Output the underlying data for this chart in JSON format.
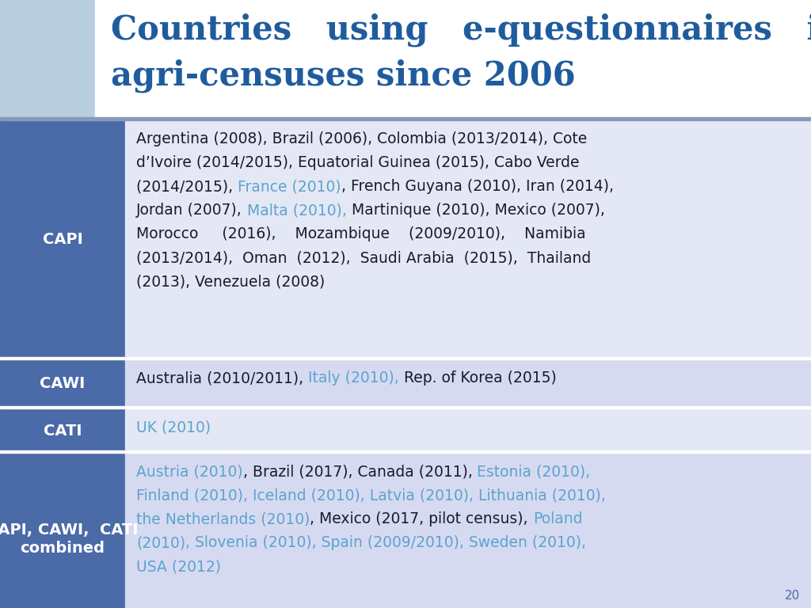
{
  "title_line1": "Countries   using   e-questionnaires   in",
  "title_line2": "agri-censuses since 2006",
  "title_color": "#1F5C9E",
  "bg_color": "#FFFFFF",
  "left_col_color": "#4A6AA8",
  "left_panel_color": "#B8CEDF",
  "grid_color": "#9BBDD0",
  "sep_line_color": "#8899BB",
  "page_number": "20",
  "page_number_color": "#4A6AA8",
  "rows": [
    {
      "label": "CAPI",
      "bg": "#E4E8F4",
      "segments": [
        {
          "text": "Argentina (2008), Brazil (2006), Colombia (2013/2014), Cote\nd’Ivoire (2014/2015), Equatorial Guinea (2015), Cabo Verde\n(2014/2015), ",
          "color": "#1a1a2e"
        },
        {
          "text": "France (2010)",
          "color": "#5BA3D0"
        },
        {
          "text": ", French Guyana (2010), Iran (2014),\nJordan (2007), ",
          "color": "#1a1a2e"
        },
        {
          "text": "Malta (2010),",
          "color": "#5BA3D0"
        },
        {
          "text": " Martinique (2010), Mexico (2007),\nMorocco     (2016),    Mozambique    (2009/2010),    Namibia\n(2013/2014),  Oman  (2012),  Saudi Arabia  (2015),  Thailand\n(2013), Venezuela (2008)",
          "color": "#1a1a2e"
        }
      ]
    },
    {
      "label": "CAWI",
      "bg": "#D6DAF0",
      "segments": [
        {
          "text": "Australia (2010/2011), ",
          "color": "#1a1a2e"
        },
        {
          "text": "Italy (2010),",
          "color": "#5BA3D0"
        },
        {
          "text": " Rep. of Korea (2015)",
          "color": "#1a1a2e"
        }
      ]
    },
    {
      "label": "CATI",
      "bg": "#E4E8F4",
      "segments": [
        {
          "text": "UK (2010)",
          "color": "#5BA3D0"
        }
      ]
    },
    {
      "label": "CAPI, CAWI,  CATI\ncombined",
      "bg": "#D6DAF0",
      "segments": [
        {
          "text": "Austria (2010)",
          "color": "#5BA3D0"
        },
        {
          "text": ", Brazil (2017), Canada (2011), ",
          "color": "#1a1a2e"
        },
        {
          "text": "Estonia (2010),\nFinland (2010), Iceland (2010), Latvia (2010), Lithuania (2010),\nthe Netherlands (2010)",
          "color": "#5BA3D0"
        },
        {
          "text": ", Mexico (2017, pilot census), ",
          "color": "#1a1a2e"
        },
        {
          "text": "Poland\n(2010)",
          "color": "#5BA3D0"
        },
        {
          "text": ", Slovenia (2010), Spain (2009/2010), Sweden (2010),\nUSA (2012)",
          "color": "#5BA3D0"
        }
      ]
    }
  ]
}
